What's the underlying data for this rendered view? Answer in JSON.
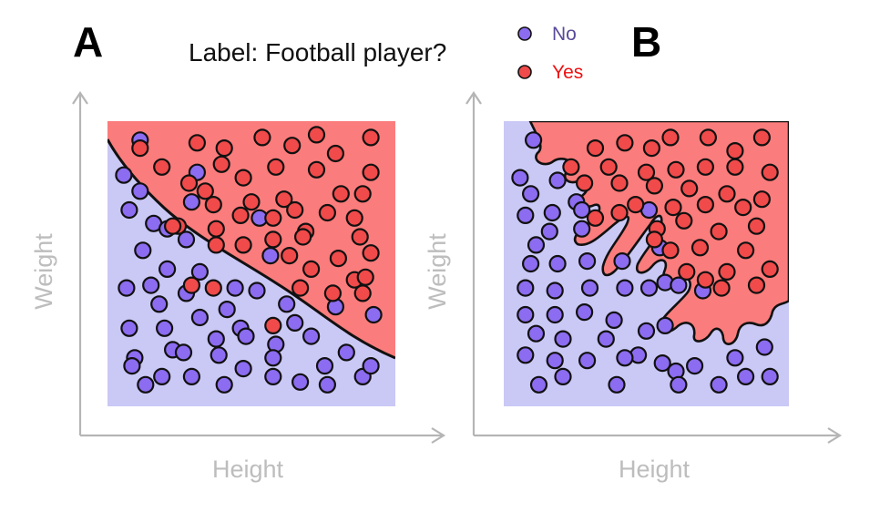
{
  "figure": {
    "panel_a_label": "A",
    "panel_b_label": "B",
    "title": "Label: Football player?",
    "legend": {
      "no_label": "No",
      "yes_label": "Yes"
    },
    "x_axis_label": "Height",
    "y_axis_label": "Weight"
  },
  "colors": {
    "no_point": "#8c6cf0",
    "yes_point": "#f04a4a",
    "no_region": "#cac8f5",
    "yes_region": "#fb7c7c",
    "no_text": "#5a4a9a",
    "yes_text": "#ee1111",
    "axis": "#b5b5b5",
    "axis_label": "#bdbdbd"
  },
  "chart_data": [
    {
      "panel": "A",
      "type": "scatter",
      "xlabel": "Height",
      "ylabel": "Weight",
      "decision_boundary": "smooth curve",
      "xlim": [
        0,
        100
      ],
      "ylim": [
        0,
        100
      ],
      "series": [
        {
          "name": "No",
          "points": [
            [
              9,
              96
            ],
            [
              3,
              83
            ],
            [
              30,
              84
            ],
            [
              9,
              77
            ],
            [
              5,
              70
            ],
            [
              28,
              73
            ],
            [
              14,
              65
            ],
            [
              19,
              63
            ],
            [
              53,
              67
            ],
            [
              26,
              59
            ],
            [
              57,
              53
            ],
            [
              10,
              55
            ],
            [
              19,
              48
            ],
            [
              31,
              47
            ],
            [
              4,
              41
            ],
            [
              13,
              42
            ],
            [
              26,
              39
            ],
            [
              44,
              41
            ],
            [
              52,
              40
            ],
            [
              16,
              35
            ],
            [
              41,
              33
            ],
            [
              31,
              30
            ],
            [
              63,
              35
            ],
            [
              81,
              34
            ],
            [
              5,
              26
            ],
            [
              18,
              26
            ],
            [
              46,
              26
            ],
            [
              66,
              28
            ],
            [
              95,
              31
            ],
            [
              37,
              22
            ],
            [
              48,
              23
            ],
            [
              59,
              20
            ],
            [
              72,
              23
            ],
            [
              7,
              15
            ],
            [
              21,
              18
            ],
            [
              38,
              16
            ],
            [
              58,
              15
            ],
            [
              85,
              17
            ],
            [
              6,
              12
            ],
            [
              25,
              17
            ],
            [
              47,
              11
            ],
            [
              77,
              12
            ],
            [
              11,
              5
            ],
            [
              17,
              8
            ],
            [
              28,
              8
            ],
            [
              40,
              5
            ],
            [
              58,
              8
            ],
            [
              68,
              6
            ],
            [
              78,
              5
            ],
            [
              91,
              8
            ],
            [
              94,
              12
            ]
          ]
        },
        {
          "name": "Yes",
          "points": [
            [
              9,
              93
            ],
            [
              30,
              95
            ],
            [
              40,
              93
            ],
            [
              54,
              97
            ],
            [
              65,
              94
            ],
            [
              74,
              98
            ],
            [
              81,
              91
            ],
            [
              94,
              97
            ],
            [
              17,
              86
            ],
            [
              39,
              87
            ],
            [
              47,
              82
            ],
            [
              59,
              86
            ],
            [
              74,
              85
            ],
            [
              94,
              84
            ],
            [
              27,
              80
            ],
            [
              33,
              77
            ],
            [
              50,
              73
            ],
            [
              62,
              74
            ],
            [
              83,
              76
            ],
            [
              91,
              76
            ],
            [
              36,
              72
            ],
            [
              46,
              68
            ],
            [
              58,
              67
            ],
            [
              66,
              70
            ],
            [
              78,
              69
            ],
            [
              88,
              67
            ],
            [
              23,
              64
            ],
            [
              37,
              63
            ],
            [
              70,
              62
            ],
            [
              37,
              57
            ],
            [
              47,
              57
            ],
            [
              58,
              59
            ],
            [
              69,
              60
            ],
            [
              90,
              60
            ],
            [
              64,
              53
            ],
            [
              82,
              52
            ],
            [
              94,
              54
            ],
            [
              72,
              48
            ],
            [
              88,
              44
            ],
            [
              68,
              41
            ],
            [
              80,
              39
            ],
            [
              91,
              39
            ],
            [
              21,
              64
            ],
            [
              36,
              41
            ],
            [
              58,
              27
            ],
            [
              92,
              45
            ],
            [
              28,
              42
            ]
          ]
        }
      ]
    },
    {
      "panel": "B",
      "type": "scatter",
      "xlabel": "Height",
      "ylabel": "Weight",
      "decision_boundary": "highly irregular, overfit contour",
      "xlim": [
        0,
        100
      ],
      "ylim": [
        0,
        100
      ],
      "series": [
        {
          "name": "No",
          "points": [
            [
              8,
              96
            ],
            [
              3,
              82
            ],
            [
              17,
              81
            ],
            [
              7,
              76
            ],
            [
              24,
              73
            ],
            [
              15,
              69
            ],
            [
              26,
              70
            ],
            [
              5,
              68
            ],
            [
              14,
              62
            ],
            [
              26,
              63
            ],
            [
              9,
              57
            ],
            [
              51,
              70
            ],
            [
              7,
              50
            ],
            [
              17,
              50
            ],
            [
              28,
              51
            ],
            [
              41,
              51
            ],
            [
              55,
              56
            ],
            [
              57,
              43
            ],
            [
              5,
              41
            ],
            [
              16,
              40
            ],
            [
              29,
              41
            ],
            [
              42,
              41
            ],
            [
              51,
              41
            ],
            [
              62,
              42
            ],
            [
              71,
              40
            ],
            [
              5,
              31
            ],
            [
              16,
              31
            ],
            [
              27,
              32
            ],
            [
              38,
              29
            ],
            [
              50,
              25
            ],
            [
              57,
              27
            ],
            [
              9,
              24
            ],
            [
              19,
              22
            ],
            [
              35,
              22
            ],
            [
              47,
              16
            ],
            [
              5,
              16
            ],
            [
              16,
              14
            ],
            [
              28,
              14
            ],
            [
              42,
              15
            ],
            [
              56,
              13
            ],
            [
              68,
              12
            ],
            [
              83,
              15
            ],
            [
              94,
              19
            ],
            [
              10,
              5
            ],
            [
              19,
              8
            ],
            [
              39,
              5
            ],
            [
              61,
              10
            ],
            [
              62,
              5
            ],
            [
              77,
              5
            ],
            [
              87,
              8
            ],
            [
              96,
              8
            ]
          ]
        },
        {
          "name": "Yes",
          "points": [
            [
              31,
              93
            ],
            [
              42,
              95
            ],
            [
              52,
              93
            ],
            [
              59,
              97
            ],
            [
              73,
              97
            ],
            [
              93,
              97
            ],
            [
              83,
              92
            ],
            [
              22,
              86
            ],
            [
              36,
              86
            ],
            [
              50,
              84
            ],
            [
              61,
              85
            ],
            [
              72,
              86
            ],
            [
              83,
              86
            ],
            [
              96,
              84
            ],
            [
              27,
              80
            ],
            [
              40,
              80
            ],
            [
              53,
              79
            ],
            [
              66,
              78
            ],
            [
              80,
              76
            ],
            [
              93,
              74
            ],
            [
              46,
              72
            ],
            [
              60,
              71
            ],
            [
              72,
              72
            ],
            [
              86,
              71
            ],
            [
              31,
              67
            ],
            [
              54,
              63
            ],
            [
              64,
              66
            ],
            [
              77,
              62
            ],
            [
              91,
              64
            ],
            [
              59,
              55
            ],
            [
              70,
              56
            ],
            [
              87,
              55
            ],
            [
              65,
              47
            ],
            [
              80,
              47
            ],
            [
              96,
              48
            ],
            [
              78,
              41
            ],
            [
              91,
              42
            ],
            [
              53,
              59
            ],
            [
              72,
              44
            ],
            [
              40,
              69
            ]
          ]
        }
      ]
    }
  ]
}
